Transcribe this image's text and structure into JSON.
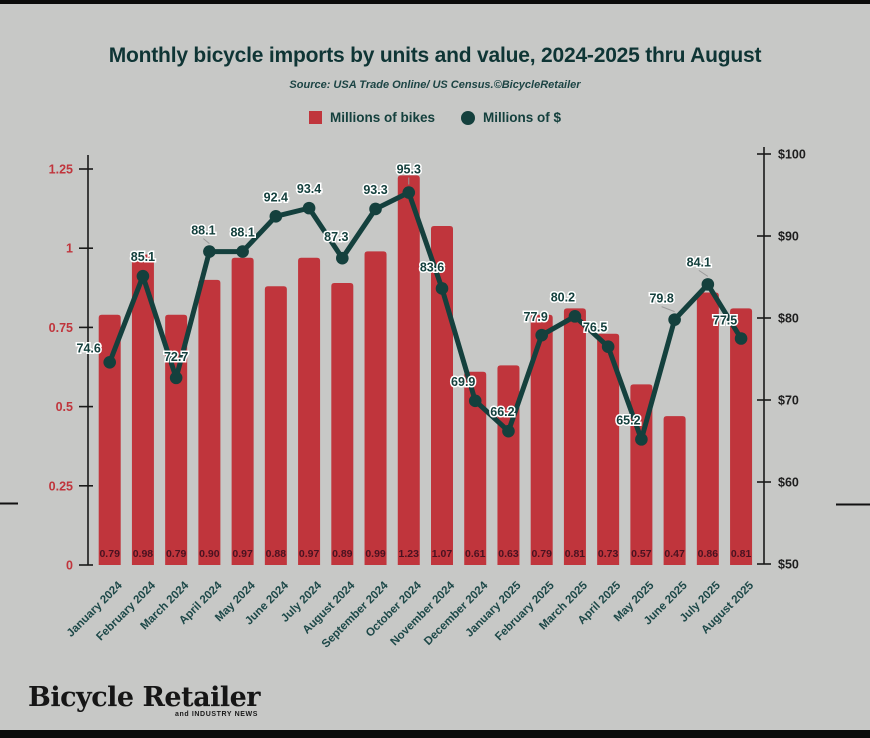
{
  "header": {
    "title": "Monthly bicycle imports by units and value, 2024-2025 thru August",
    "source": "Source: USA Trade Online/ US Census.©BicycleRetailer"
  },
  "legend": {
    "items": [
      {
        "label": "Millions of bikes",
        "swatch": "square",
        "color": "#c0353c"
      },
      {
        "label": "Millions of $",
        "swatch": "circle",
        "color": "#14403d"
      }
    ]
  },
  "chart_data": {
    "type": "bar",
    "title": "Monthly bicycle imports by units and value, 2024-2025 thru August",
    "subtitle": "Source: USA Trade Online/ US Census.©BicycleRetailer",
    "legend_position": "top",
    "grid": false,
    "categories": [
      "January 2024",
      "February 2024",
      "March 2024",
      "April 2024",
      "May 2024",
      "June 2024",
      "July 2024",
      "August 2024",
      "September 2024",
      "October 2024",
      "November 2024",
      "December 2024",
      "January 2025",
      "February 2025",
      "March 2025",
      "April 2025",
      "May 2025",
      "June 2025",
      "July 2025",
      "August 2025"
    ],
    "series": [
      {
        "name": "Millions of bikes",
        "type": "bar",
        "axis": "left",
        "color": "#c0353c",
        "values": [
          0.79,
          0.98,
          0.79,
          0.9,
          0.97,
          0.88,
          0.97,
          0.89,
          0.99,
          1.23,
          1.07,
          0.61,
          0.63,
          0.79,
          0.81,
          0.73,
          0.57,
          0.47,
          0.86,
          0.81
        ]
      },
      {
        "name": "Millions of $",
        "type": "line",
        "axis": "right",
        "color": "#14403d",
        "values": [
          74.6,
          85.1,
          72.7,
          88.1,
          88.1,
          92.4,
          93.4,
          87.3,
          93.3,
          95.3,
          83.6,
          69.9,
          66.2,
          77.9,
          80.2,
          76.5,
          65.2,
          79.8,
          84.1,
          77.5
        ]
      }
    ],
    "left_axis": {
      "min": 0,
      "max": 1.25,
      "ticks": [
        "0",
        "0.25",
        "0.5",
        "0.75",
        "1",
        "1.25"
      ],
      "label_color": "#c0353c"
    },
    "right_axis": {
      "min": 50,
      "max": 100,
      "ticks": [
        "$50",
        "$60",
        "$70",
        "$80",
        "$90",
        "$100"
      ],
      "label_color": "#1e1e1e"
    }
  },
  "footer": {
    "logo": "Bicycle Retailer",
    "logo_sub": "and INDUSTRY NEWS"
  },
  "colors": {
    "background": "#c7c8c6",
    "strip": "#0b0b0b",
    "bar": "#c0353c",
    "line": "#14403d",
    "bar_value_label": "#4a1220",
    "x_label": "#1d4848",
    "axis": "#1a1a1a"
  }
}
